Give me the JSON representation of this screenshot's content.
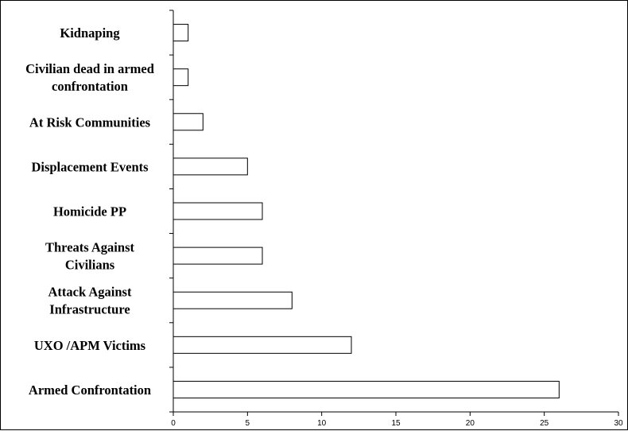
{
  "chart_data": {
    "type": "bar",
    "orientation": "horizontal",
    "categories": [
      [
        "Kidnaping"
      ],
      [
        "Civilian dead in armed",
        "confrontation"
      ],
      [
        "At Risk Communities"
      ],
      [
        "Displacement Events"
      ],
      [
        "Homicide PP"
      ],
      [
        "Threats Against",
        "Civilians"
      ],
      [
        "Attack Against",
        "Infrastructure"
      ],
      [
        "UXO /APM Victims"
      ],
      [
        "Armed Confrontation"
      ]
    ],
    "values": [
      1,
      1,
      2,
      5,
      6,
      6,
      8,
      12,
      26
    ],
    "xlim": [
      0,
      30
    ],
    "xticks": [
      "0",
      "5",
      "10",
      "15",
      "20",
      "25",
      "30"
    ],
    "title": "",
    "xlabel": "",
    "ylabel": "",
    "grid": false,
    "bar_fill": "#ffffff",
    "bar_stroke": "#000000"
  }
}
